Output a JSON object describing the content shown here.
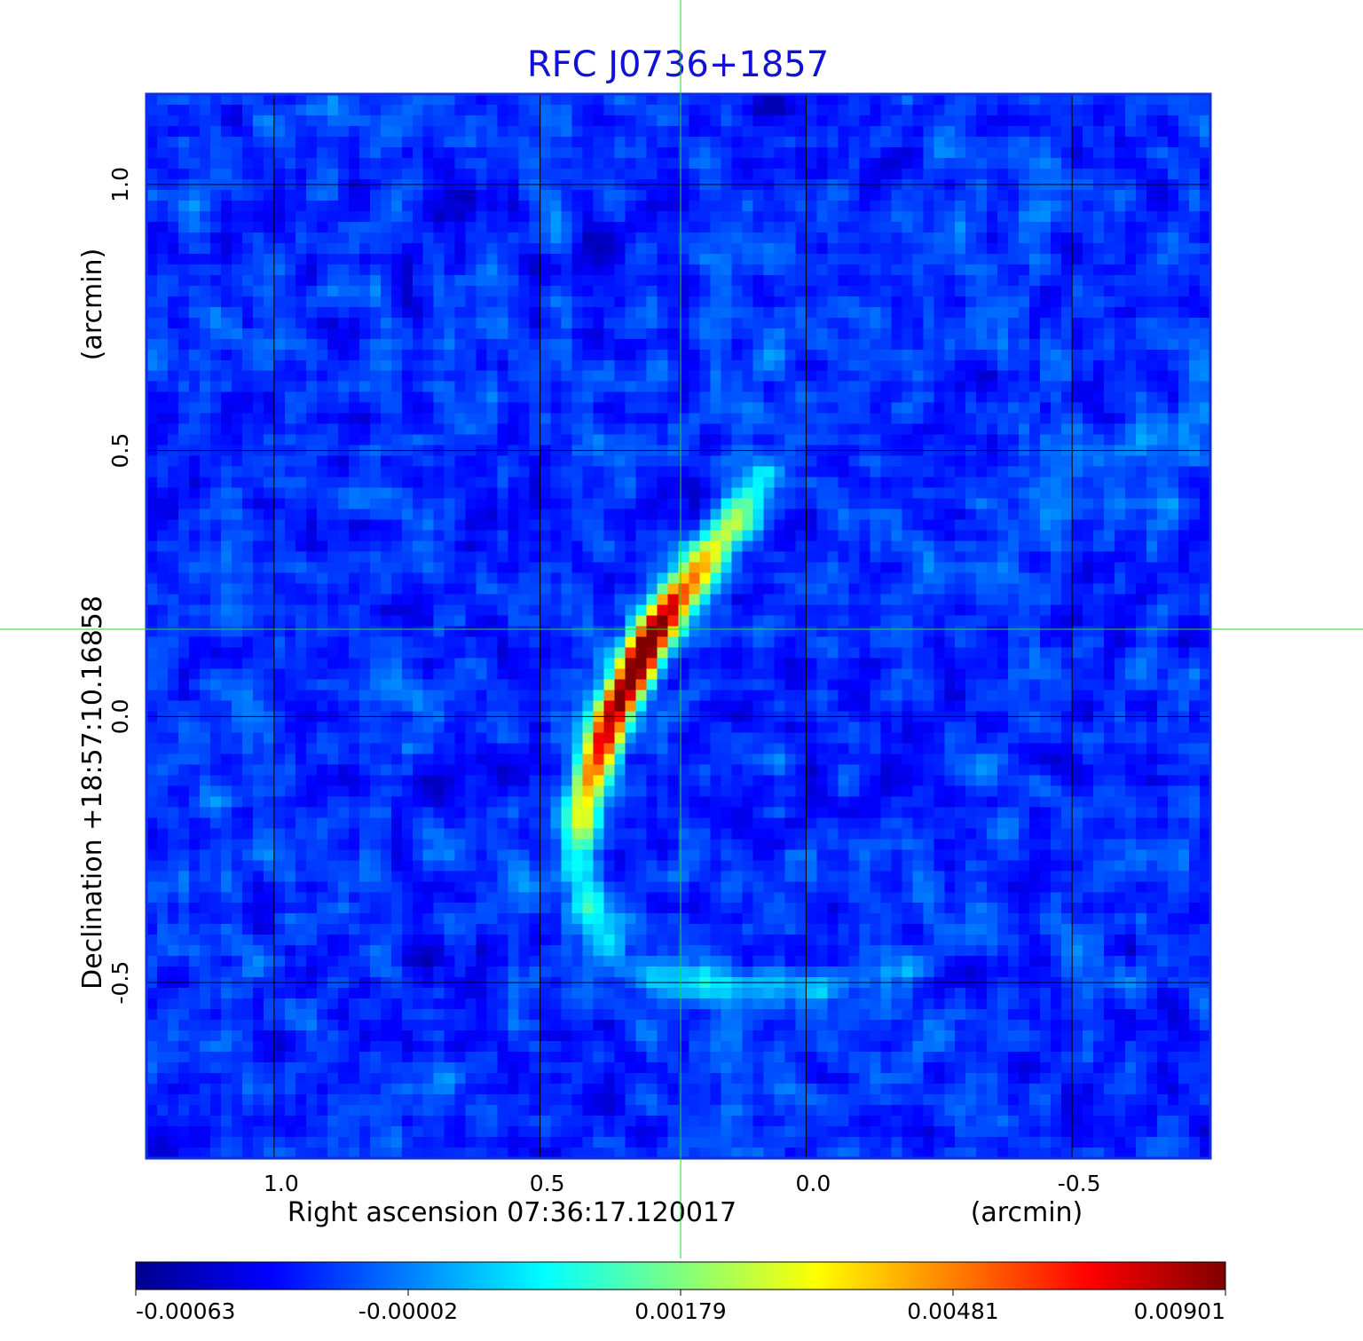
{
  "chart_data": {
    "type": "heatmap",
    "title": "RFC J0736+1857",
    "xlabel": "Right ascension  07:36:17.120017",
    "xunit": "(arcmin)",
    "ylabel": "Declination  +18:57:10.16858",
    "yunit": "(arcmin)",
    "xlim": [
      1.24,
      -0.76
    ],
    "ylim": [
      -0.83,
      1.17
    ],
    "x_ticks": [
      1.0,
      0.5,
      0.0,
      -0.5
    ],
    "x_tick_labels": [
      "1.0",
      "0.5",
      "0.0",
      "-0.5"
    ],
    "y_ticks": [
      -0.5,
      0.0,
      0.5,
      1.0
    ],
    "y_tick_labels": [
      "-0.5",
      "0.0",
      "0.5",
      "1.0"
    ],
    "grid": true,
    "crosshair": {
      "x": 0.233,
      "y": 0.17
    },
    "colorbar": {
      "colormap": "jet",
      "ticks": [
        "-0.00063",
        "-0.00002",
        "0.00179",
        "0.00481",
        "0.00901"
      ]
    },
    "features": [
      {
        "kind": "arc",
        "peak_x": 0.31,
        "peak_y": 0.11,
        "peak_value": 0.00901
      }
    ]
  },
  "colors": {
    "frame": "#1030e0",
    "grid": "#000000",
    "crosshair": "#22dd22",
    "title": "#1010d8"
  }
}
